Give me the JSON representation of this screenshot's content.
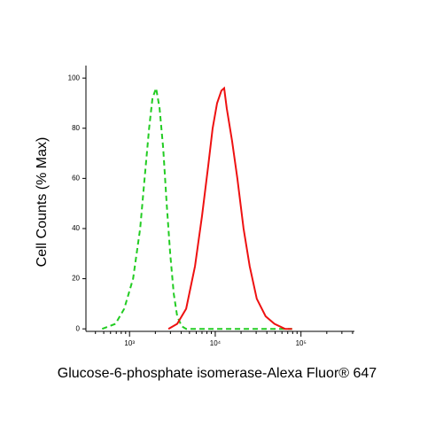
{
  "chart_data": {
    "type": "line",
    "xlabel": "Glucose-6-phosphate isomerase-Alexa Fluor® 647",
    "ylabel": "Cell Counts (% Max)",
    "xscale": "log",
    "xlim": [
      310,
      420000
    ],
    "ylim": [
      -1,
      105
    ],
    "xticks": [
      {
        "value": 1000,
        "label": "10³"
      },
      {
        "value": 10000,
        "label": "10⁴"
      },
      {
        "value": 100000,
        "label": "10⁵"
      }
    ],
    "xminorticks": [
      400,
      500,
      600,
      700,
      800,
      900,
      2000,
      3000,
      4000,
      5000,
      6000,
      7000,
      8000,
      9000,
      20000,
      30000,
      40000,
      50000,
      60000,
      70000,
      80000,
      90000,
      200000,
      300000,
      400000
    ],
    "yticks": [
      0,
      20,
      40,
      60,
      80,
      100
    ],
    "series": [
      {
        "color": "#22cc22",
        "dash": true,
        "x": [
          479,
          684,
          867,
          1100,
          1330,
          1500,
          1690,
          1850,
          2040,
          2240,
          2470,
          2710,
          2980,
          3280,
          3600,
          4060,
          4570,
          78900
        ],
        "values": [
          0,
          2,
          8,
          20,
          40,
          60,
          80,
          92,
          96,
          88,
          72,
          50,
          30,
          14,
          5,
          1,
          0,
          0
        ]
      },
      {
        "color": "#ee1111",
        "dash": false,
        "x": [
          2840,
          3600,
          4570,
          5800,
          7000,
          8270,
          9310,
          10500,
          11800,
          12700,
          13600,
          15700,
          18100,
          21400,
          25200,
          30500,
          38700,
          49100,
          65200,
          78900
        ],
        "values": [
          0,
          2,
          8,
          25,
          45,
          65,
          80,
          90,
          95,
          96,
          88,
          75,
          60,
          40,
          25,
          12,
          5,
          2,
          0,
          0
        ]
      }
    ]
  }
}
